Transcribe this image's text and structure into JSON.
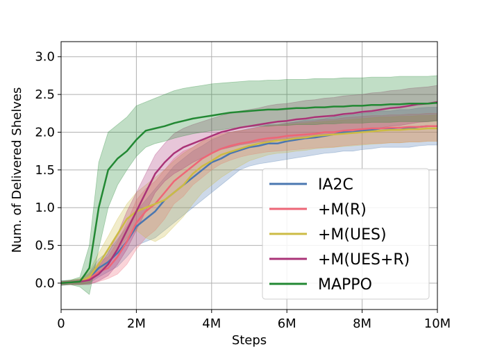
{
  "chart_data": {
    "type": "line",
    "xlabel": "Steps",
    "ylabel": "Num. of Delivered Shelves",
    "xlim": [
      0,
      10
    ],
    "ylim": [
      -0.35,
      3.2
    ],
    "x_ticks": [
      {
        "value": 0,
        "label": "0"
      },
      {
        "value": 2,
        "label": "2M"
      },
      {
        "value": 4,
        "label": "4M"
      },
      {
        "value": 6,
        "label": "6M"
      },
      {
        "value": 8,
        "label": "8M"
      },
      {
        "value": 10,
        "label": "10M"
      }
    ],
    "y_ticks": [
      {
        "value": 0.0,
        "label": "0.0"
      },
      {
        "value": 0.5,
        "label": "0.5"
      },
      {
        "value": 1.0,
        "label": "1.0"
      },
      {
        "value": 1.5,
        "label": "1.5"
      },
      {
        "value": 2.0,
        "label": "2.0"
      },
      {
        "value": 2.5,
        "label": "2.5"
      },
      {
        "value": 3.0,
        "label": "3.0"
      }
    ],
    "grid": true,
    "legend_position": "lower-right",
    "x": [
      0,
      0.25,
      0.5,
      0.75,
      1,
      1.25,
      1.5,
      1.75,
      2,
      2.25,
      2.5,
      2.75,
      3,
      3.25,
      3.5,
      3.75,
      4,
      4.25,
      4.5,
      4.75,
      5,
      5.25,
      5.5,
      5.75,
      6,
      6.25,
      6.5,
      6.75,
      7,
      7.25,
      7.5,
      7.75,
      8,
      8.25,
      8.5,
      8.75,
      9,
      9.25,
      9.5,
      9.75,
      10
    ],
    "series": [
      {
        "name": "IA2C",
        "color": "#4a77b0",
        "values": [
          0.0,
          0.01,
          0.02,
          0.07,
          0.2,
          0.28,
          0.4,
          0.55,
          0.75,
          0.85,
          0.95,
          1.1,
          1.2,
          1.3,
          1.4,
          1.5,
          1.6,
          1.65,
          1.72,
          1.76,
          1.8,
          1.82,
          1.85,
          1.85,
          1.88,
          1.9,
          1.92,
          1.93,
          1.95,
          1.97,
          2.0,
          2.0,
          2.02,
          2.03,
          2.05,
          2.05,
          2.06,
          2.05,
          2.07,
          2.08,
          2.08
        ],
        "lower": [
          -0.03,
          -0.02,
          -0.02,
          0.0,
          0.08,
          0.15,
          0.22,
          0.35,
          0.5,
          0.55,
          0.6,
          0.7,
          0.8,
          0.9,
          1.0,
          1.1,
          1.2,
          1.3,
          1.4,
          1.5,
          1.55,
          1.58,
          1.6,
          1.62,
          1.64,
          1.66,
          1.68,
          1.7,
          1.72,
          1.73,
          1.75,
          1.75,
          1.77,
          1.78,
          1.8,
          1.8,
          1.8,
          1.8,
          1.82,
          1.83,
          1.83
        ],
        "upper": [
          0.03,
          0.04,
          0.05,
          0.14,
          0.32,
          0.42,
          0.58,
          0.75,
          0.95,
          1.1,
          1.25,
          1.4,
          1.55,
          1.65,
          1.75,
          1.82,
          1.9,
          1.95,
          2.0,
          2.02,
          2.05,
          2.07,
          2.1,
          2.1,
          2.12,
          2.14,
          2.16,
          2.17,
          2.18,
          2.2,
          2.22,
          2.23,
          2.25,
          2.26,
          2.28,
          2.28,
          2.3,
          2.3,
          2.32,
          2.33,
          2.33
        ]
      },
      {
        "name": "+M(R)",
        "color": "#ee6677",
        "values": [
          0.0,
          0.01,
          0.02,
          0.06,
          0.15,
          0.2,
          0.35,
          0.55,
          0.8,
          0.95,
          1.05,
          1.2,
          1.35,
          1.45,
          1.55,
          1.65,
          1.72,
          1.78,
          1.82,
          1.85,
          1.87,
          1.9,
          1.92,
          1.93,
          1.95,
          1.96,
          1.97,
          1.98,
          2.0,
          2.0,
          2.02,
          2.03,
          2.04,
          2.05,
          2.05,
          2.06,
          2.06,
          2.07,
          2.07,
          2.08,
          2.08
        ],
        "lower": [
          -0.02,
          -0.02,
          -0.02,
          -0.01,
          0.02,
          0.06,
          0.12,
          0.25,
          0.45,
          0.6,
          0.7,
          0.85,
          1.05,
          1.15,
          1.3,
          1.4,
          1.5,
          1.58,
          1.63,
          1.67,
          1.7,
          1.72,
          1.74,
          1.75,
          1.76,
          1.77,
          1.78,
          1.79,
          1.8,
          1.8,
          1.82,
          1.83,
          1.84,
          1.85,
          1.85,
          1.86,
          1.86,
          1.87,
          1.87,
          1.88,
          1.88
        ],
        "upper": [
          0.02,
          0.03,
          0.05,
          0.12,
          0.28,
          0.35,
          0.55,
          0.8,
          1.1,
          1.25,
          1.35,
          1.5,
          1.65,
          1.75,
          1.8,
          1.88,
          1.95,
          1.98,
          2.0,
          2.02,
          2.04,
          2.07,
          2.09,
          2.1,
          2.12,
          2.13,
          2.14,
          2.15,
          2.17,
          2.17,
          2.19,
          2.2,
          2.21,
          2.22,
          2.22,
          2.23,
          2.23,
          2.24,
          2.24,
          2.25,
          2.25
        ]
      },
      {
        "name": "+M(UES)",
        "color": "#ccbb44",
        "values": [
          0.0,
          0.01,
          0.02,
          0.08,
          0.25,
          0.45,
          0.65,
          0.85,
          0.95,
          1.0,
          1.05,
          1.1,
          1.2,
          1.3,
          1.45,
          1.55,
          1.62,
          1.7,
          1.74,
          1.78,
          1.82,
          1.85,
          1.87,
          1.89,
          1.9,
          1.92,
          1.93,
          1.95,
          1.96,
          1.97,
          1.98,
          1.99,
          2.0,
          2.01,
          2.02,
          2.03,
          2.03,
          2.04,
          2.04,
          2.05,
          2.05
        ],
        "lower": [
          -0.02,
          -0.02,
          -0.02,
          0.01,
          0.12,
          0.28,
          0.45,
          0.6,
          0.7,
          0.6,
          0.55,
          0.62,
          0.75,
          0.88,
          1.05,
          1.2,
          1.3,
          1.4,
          1.48,
          1.55,
          1.62,
          1.66,
          1.7,
          1.72,
          1.73,
          1.75,
          1.76,
          1.78,
          1.79,
          1.8,
          1.81,
          1.82,
          1.83,
          1.84,
          1.85,
          1.86,
          1.86,
          1.87,
          1.87,
          1.88,
          1.88
        ],
        "upper": [
          0.02,
          0.04,
          0.06,
          0.16,
          0.4,
          0.62,
          0.85,
          1.05,
          1.2,
          1.3,
          1.4,
          1.5,
          1.62,
          1.72,
          1.8,
          1.88,
          1.92,
          1.97,
          2.0,
          2.02,
          2.04,
          2.06,
          2.08,
          2.09,
          2.1,
          2.11,
          2.12,
          2.13,
          2.14,
          2.15,
          2.16,
          2.17,
          2.18,
          2.19,
          2.2,
          2.2,
          2.21,
          2.21,
          2.22,
          2.22,
          2.23
        ]
      },
      {
        "name": "+M(UES+R)",
        "color": "#aa3377",
        "values": [
          0.0,
          0.01,
          0.02,
          0.04,
          0.12,
          0.25,
          0.45,
          0.7,
          0.95,
          1.2,
          1.45,
          1.6,
          1.72,
          1.8,
          1.85,
          1.9,
          1.95,
          2.0,
          2.03,
          2.06,
          2.08,
          2.1,
          2.12,
          2.14,
          2.15,
          2.17,
          2.18,
          2.2,
          2.21,
          2.22,
          2.24,
          2.25,
          2.27,
          2.28,
          2.3,
          2.32,
          2.33,
          2.35,
          2.37,
          2.38,
          2.4
        ],
        "lower": [
          -0.02,
          -0.02,
          -0.02,
          -0.02,
          0.03,
          0.1,
          0.25,
          0.45,
          0.7,
          0.95,
          1.2,
          1.35,
          1.45,
          1.52,
          1.6,
          1.66,
          1.72,
          1.77,
          1.8,
          1.83,
          1.85,
          1.87,
          1.88,
          1.9,
          1.91,
          1.93,
          1.94,
          1.96,
          1.97,
          1.98,
          2.0,
          2.01,
          2.03,
          2.04,
          2.06,
          2.08,
          2.09,
          2.11,
          2.13,
          2.14,
          2.16
        ],
        "upper": [
          0.02,
          0.03,
          0.04,
          0.08,
          0.22,
          0.4,
          0.65,
          0.95,
          1.2,
          1.45,
          1.7,
          1.85,
          1.98,
          2.05,
          2.1,
          2.14,
          2.18,
          2.22,
          2.25,
          2.28,
          2.3,
          2.32,
          2.35,
          2.37,
          2.38,
          2.4,
          2.42,
          2.43,
          2.45,
          2.46,
          2.48,
          2.49,
          2.5,
          2.52,
          2.53,
          2.55,
          2.56,
          2.58,
          2.59,
          2.6,
          2.62
        ]
      },
      {
        "name": "MAPPO",
        "color": "#228833",
        "values": [
          0.0,
          0.01,
          0.02,
          0.2,
          1.0,
          1.5,
          1.65,
          1.75,
          1.9,
          2.02,
          2.05,
          2.08,
          2.12,
          2.15,
          2.18,
          2.2,
          2.22,
          2.24,
          2.26,
          2.27,
          2.28,
          2.29,
          2.3,
          2.3,
          2.31,
          2.32,
          2.32,
          2.33,
          2.33,
          2.34,
          2.34,
          2.35,
          2.35,
          2.36,
          2.36,
          2.37,
          2.37,
          2.38,
          2.38,
          2.38,
          2.39
        ],
        "lower": [
          -0.03,
          -0.02,
          -0.05,
          -0.15,
          0.45,
          1.0,
          1.3,
          1.5,
          1.68,
          1.8,
          1.85,
          1.88,
          1.92,
          1.95,
          1.98,
          2.0,
          2.02,
          2.03,
          2.05,
          2.06,
          2.07,
          2.08,
          2.08,
          2.09,
          2.09,
          2.1,
          2.1,
          2.1,
          2.11,
          2.11,
          2.12,
          2.12,
          2.12,
          2.13,
          2.13,
          2.13,
          2.14,
          2.14,
          2.14,
          2.14,
          2.15
        ],
        "upper": [
          0.03,
          0.04,
          0.08,
          0.5,
          1.6,
          2.0,
          2.1,
          2.2,
          2.35,
          2.4,
          2.45,
          2.5,
          2.55,
          2.58,
          2.6,
          2.62,
          2.64,
          2.65,
          2.66,
          2.67,
          2.68,
          2.68,
          2.69,
          2.69,
          2.7,
          2.7,
          2.7,
          2.71,
          2.71,
          2.71,
          2.72,
          2.72,
          2.72,
          2.73,
          2.73,
          2.73,
          2.74,
          2.74,
          2.74,
          2.74,
          2.75
        ]
      }
    ]
  }
}
